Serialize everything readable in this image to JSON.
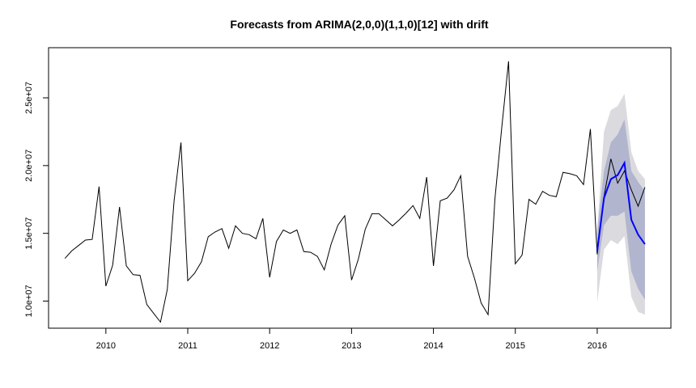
{
  "chart_data": {
    "type": "line",
    "title": "Forecasts from ARIMA(2,0,0)(1,1,0)[12] with drift",
    "xlabel": "",
    "ylabel": "",
    "xlim": [
      2009.3,
      2016.9
    ],
    "ylim": [
      8000000,
      28700000
    ],
    "x_ticks": [
      2010,
      2011,
      2012,
      2013,
      2014,
      2015,
      2016
    ],
    "x_tick_labels": [
      "2010",
      "2011",
      "2012",
      "2013",
      "2014",
      "2015",
      "2016"
    ],
    "y_ticks": [
      10000000,
      15000000,
      20000000,
      25000000
    ],
    "y_tick_labels": [
      "1.0e+07",
      "1.5e+07",
      "2.0e+07",
      "2.5e+07"
    ],
    "grid": false,
    "colors": {
      "observed": "#000000",
      "forecast": "#0000ff",
      "band80": "#b1b5ce",
      "band95": "#dbdbdf"
    },
    "series": [
      {
        "role": "observed",
        "x": [
          2009.5,
          2009.583,
          2009.667,
          2009.75,
          2009.833,
          2009.917,
          2010.0,
          2010.083,
          2010.167,
          2010.25,
          2010.333,
          2010.417,
          2010.5,
          2010.583,
          2010.667,
          2010.75,
          2010.833,
          2010.917,
          2011.0,
          2011.083,
          2011.167,
          2011.25,
          2011.333,
          2011.417,
          2011.5,
          2011.583,
          2011.667,
          2011.75,
          2011.833,
          2011.917,
          2012.0,
          2012.083,
          2012.167,
          2012.25,
          2012.333,
          2012.417,
          2012.5,
          2012.583,
          2012.667,
          2012.75,
          2012.833,
          2012.917,
          2013.0,
          2013.083,
          2013.167,
          2013.25,
          2013.333,
          2013.417,
          2013.5,
          2013.583,
          2013.667,
          2013.75,
          2013.833,
          2013.917,
          2014.0,
          2014.083,
          2014.167,
          2014.25,
          2014.333,
          2014.417,
          2014.5,
          2014.583,
          2014.667,
          2014.75,
          2014.833,
          2014.917,
          2015.0,
          2015.083,
          2015.167,
          2015.25,
          2015.333,
          2015.417,
          2015.5,
          2015.583,
          2015.667,
          2015.75,
          2015.833,
          2015.917,
          2016.0,
          2016.083,
          2016.167,
          2016.25,
          2016.333,
          2016.417,
          2016.5,
          2016.583
        ],
        "values": [
          13150000,
          13700000,
          14100000,
          14500000,
          14550000,
          18450000,
          11100000,
          12650000,
          16950000,
          12600000,
          11950000,
          11900000,
          9750000,
          9100000,
          8450000,
          10850000,
          17400000,
          21700000,
          11500000,
          12050000,
          12900000,
          14750000,
          15100000,
          15350000,
          13900000,
          15550000,
          15000000,
          14900000,
          14600000,
          16100000,
          11750000,
          14400000,
          15250000,
          15000000,
          15250000,
          13650000,
          13600000,
          13300000,
          12300000,
          14200000,
          15600000,
          16300000,
          11550000,
          13100000,
          15300000,
          16450000,
          16450000,
          16000000,
          15550000,
          16000000,
          16500000,
          17050000,
          16100000,
          19150000,
          12600000,
          17400000,
          17600000,
          18200000,
          19250000,
          13300000,
          11700000,
          9850000,
          9000000,
          17500000,
          22750000,
          27700000,
          12750000,
          13400000,
          17500000,
          17150000,
          18100000,
          17800000,
          17700000,
          19500000,
          19400000,
          19250000,
          18600000,
          22700000,
          13450000,
          17700000,
          20500000,
          18700000,
          19600000,
          18200000,
          17000000,
          18400000
        ]
      },
      {
        "role": "forecast",
        "x": [
          2016.0,
          2016.083,
          2016.167,
          2016.25,
          2016.333,
          2016.417,
          2016.5,
          2016.583
        ],
        "values": [
          13700000,
          17600000,
          19000000,
          19300000,
          20200000,
          16000000,
          14900000,
          14200000
        ],
        "lo80": [
          12200000,
          15600000,
          16300000,
          16300000,
          16600000,
          12200000,
          10900000,
          10100000
        ],
        "hi80": [
          15200000,
          19600000,
          21700000,
          22300000,
          23400000,
          19600000,
          18800000,
          18100000
        ],
        "lo95": [
          9900000,
          13800000,
          14500000,
          14200000,
          14800000,
          10300000,
          9200000,
          9000000
        ],
        "hi95": [
          15200000,
          22500000,
          24100000,
          24400000,
          25300000,
          21000000,
          19600000,
          19000000
        ]
      }
    ]
  }
}
